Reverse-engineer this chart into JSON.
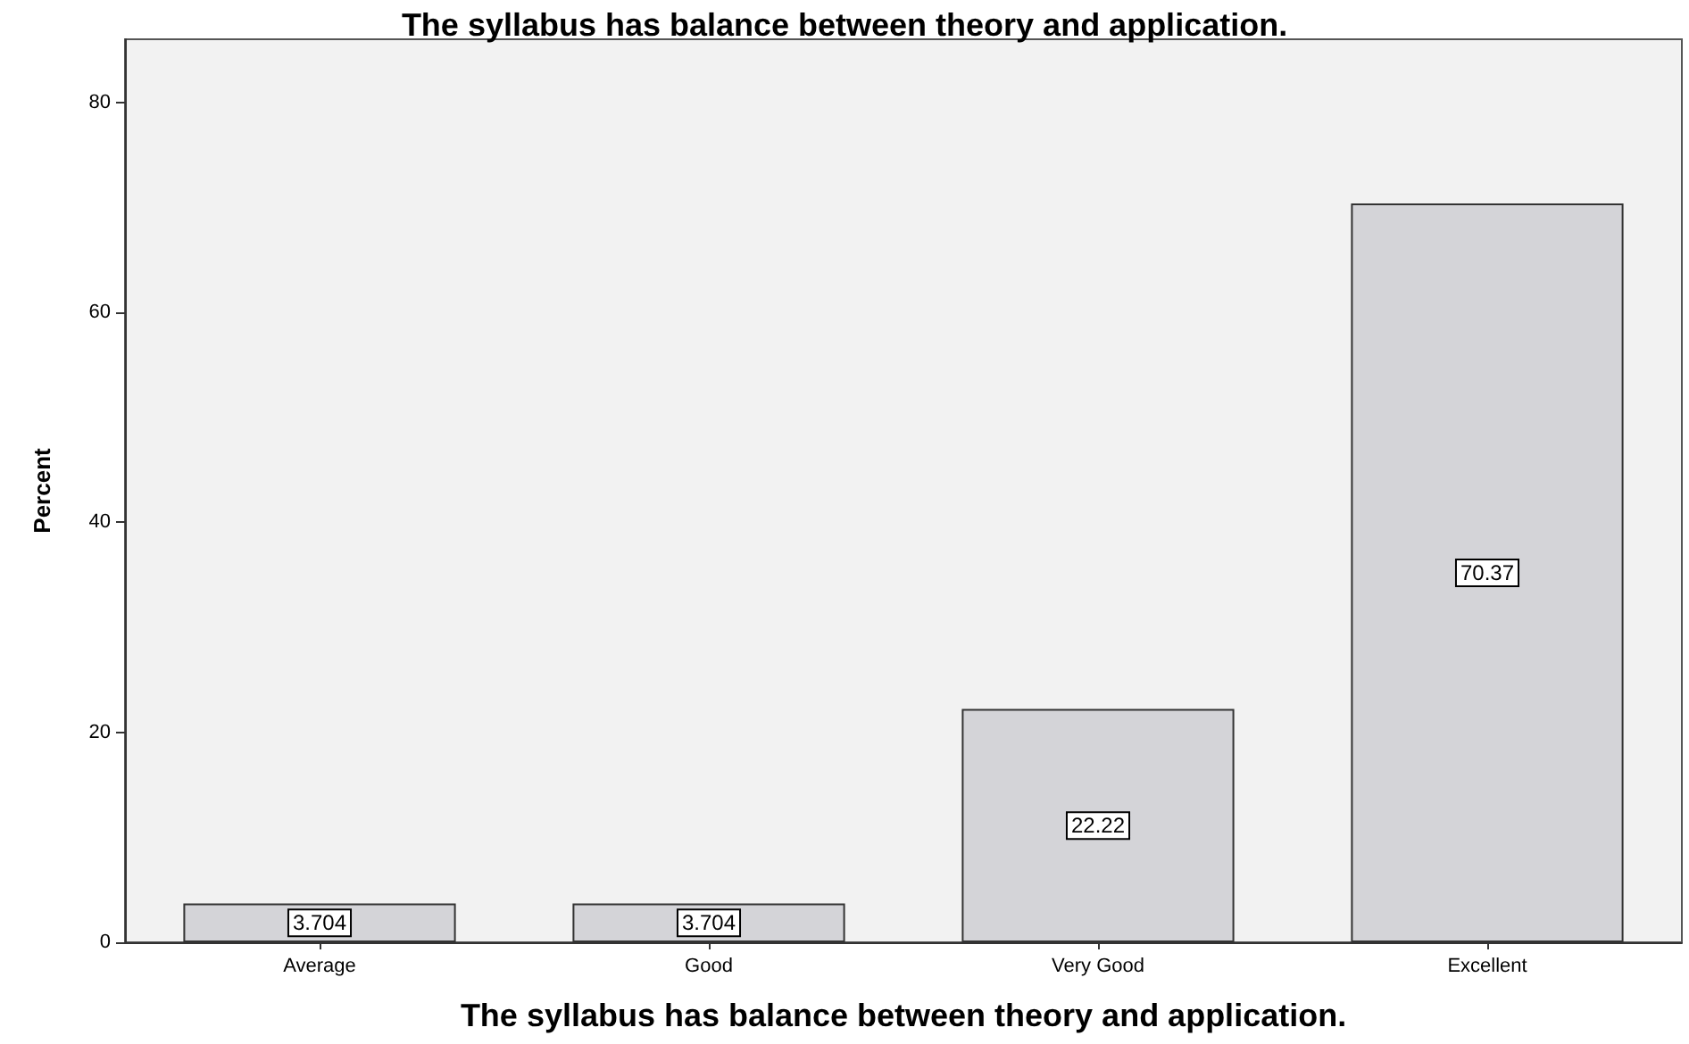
{
  "chart_data": {
    "type": "bar",
    "title": "The syllabus has balance between theory and application.",
    "xlabel": "The syllabus has balance between theory and application.",
    "ylabel": "Percent",
    "categories": [
      "Average",
      "Good",
      "Very Good",
      "Excellent"
    ],
    "values": [
      3.704,
      3.704,
      22.22,
      70.37
    ],
    "color": "#d4d4d8",
    "ylim": [
      0,
      86
    ],
    "yticks": [
      0,
      20,
      40,
      60,
      80
    ],
    "grid": false,
    "data_labels": true
  }
}
